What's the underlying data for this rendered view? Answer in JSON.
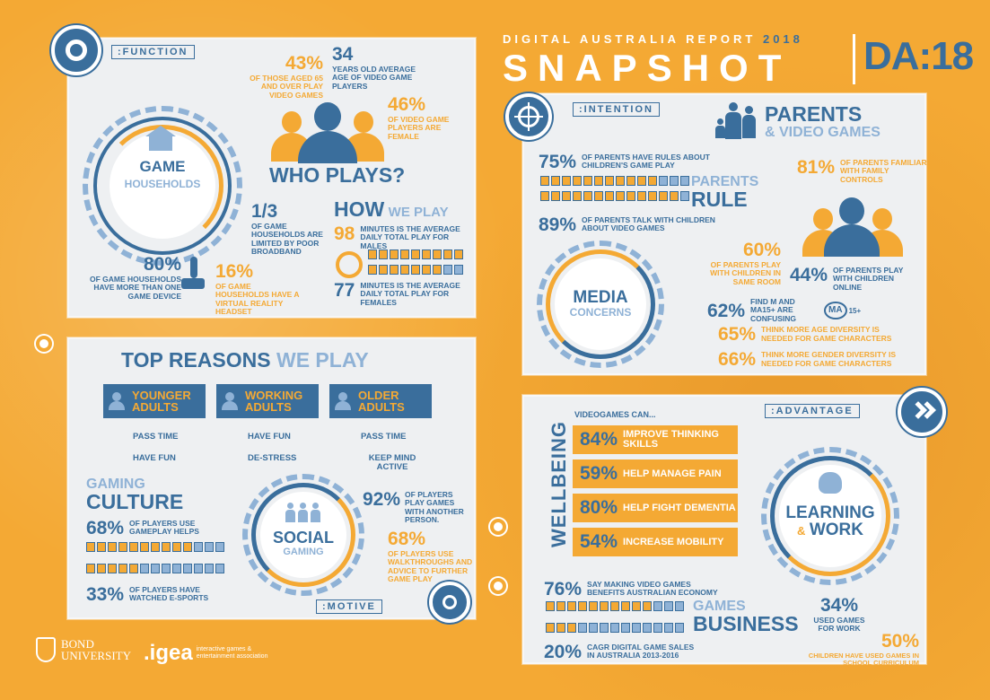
{
  "header": {
    "subtitle_prefix": "DIGITAL AUSTRALIA REPORT",
    "year": "2018",
    "title": "SNAPSHOT",
    "logo": "DA:18"
  },
  "function": {
    "tag": ":FUNCTION",
    "game_households_line1": "GAME",
    "game_households_line2": "HOUSEHOLDS",
    "stat_43_value": "43%",
    "stat_43_text": "OF THOSE AGED 65 AND OVER PLAY VIDEO GAMES",
    "stat_34_value": "34",
    "stat_34_text": "YEARS OLD AVERAGE AGE OF VIDEO GAME PLAYERS",
    "stat_46_value": "46%",
    "stat_46_text": "OF VIDEO GAME PLAYERS ARE FEMALE",
    "who_plays": "WHO PLAYS?",
    "stat_1_3_value": "1/3",
    "stat_1_3_text": "OF GAME HOUSEHOLDS ARE LIMITED BY POOR BROADBAND",
    "stat_80_value": "80%",
    "stat_80_text": "OF GAME HOUSEHOLDS HAVE MORE THAN ONE GAME DEVICE",
    "stat_16_value": "16%",
    "stat_16_text": "OF GAME HOUSEHOLDS HAVE A VIRTUAL REALITY HEADSET",
    "how_a": "HOW",
    "how_b": "WE PLAY",
    "stat_98_value": "98",
    "stat_98_text": "MINUTES IS THE AVERAGE DAILY TOTAL PLAY FOR MALES",
    "stat_77_value": "77",
    "stat_77_text": "MINUTES IS THE AVERAGE DAILY TOTAL PLAY FOR FEMALES",
    "males_bar": 0.98,
    "females_bar": 0.77
  },
  "intention": {
    "tag": ":INTENTION",
    "parents_a": "PARENTS",
    "parents_b": "& VIDEO GAMES",
    "stat_75_value": "75%",
    "stat_75_text": "OF PARENTS HAVE RULES ABOUT CHILDREN'S GAME PLAY",
    "stat_89_value": "89%",
    "stat_89_text": "OF PARENTS TALK WITH CHILDREN ABOUT VIDEO GAMES",
    "parents_rule_a": "PARENTS",
    "parents_rule_b": "RULE",
    "stat_81_value": "81%",
    "stat_81_text": "OF PARENTS FAMILIAR WITH FAMILY CONTROLS",
    "stat_60_value": "60%",
    "stat_60_text": "OF PARENTS PLAY WITH CHILDREN IN SAME ROOM",
    "stat_44_value": "44%",
    "stat_44_text": "OF PARENTS PLAY WITH CHILDREN ONLINE",
    "media_a": "MEDIA",
    "media_b": "CONCERNS",
    "stat_62_value": "62%",
    "stat_62_text": "FIND M AND MA15+ ARE CONFUSING",
    "ma_badge": "MA",
    "ma_suffix": "15+",
    "stat_65_value": "65%",
    "stat_65_text": "THINK MORE AGE DIVERSITY IS NEEDED FOR GAME CHARACTERS",
    "stat_66_value": "66%",
    "stat_66_text": "THINK MORE GENDER DIVERSITY IS NEEDED FOR GAME CHARACTERS"
  },
  "motive": {
    "tag": ":MOTIVE",
    "title_a": "TOP REASONS",
    "title_b": "WE PLAY",
    "groups": [
      {
        "label_a": "YOUNGER",
        "label_b": "ADULTS",
        "r1": "PASS TIME",
        "r2": "HAVE FUN"
      },
      {
        "label_a": "WORKING",
        "label_b": "ADULTS",
        "r1": "HAVE FUN",
        "r2": "DE-STRESS"
      },
      {
        "label_a": "OLDER",
        "label_b": "ADULTS",
        "r1": "PASS TIME",
        "r2": "KEEP MIND ACTIVE"
      }
    ],
    "culture_a": "GAMING",
    "culture_b": "CULTURE",
    "stat_68a_value": "68%",
    "stat_68a_text": "OF PLAYERS USE GAMEPLAY HELPS",
    "stat_33_value": "33%",
    "stat_33_text": "OF PLAYERS HAVE WATCHED E-SPORTS",
    "social_a": "SOCIAL",
    "social_b": "GAMING",
    "stat_92_value": "92%",
    "stat_92_text": "OF PLAYERS PLAY GAMES WITH ANOTHER PERSON.",
    "stat_68b_value": "68%",
    "stat_68b_text": "OF PLAYERS USE WALKTHROUGHS AND ADVICE TO FURTHER GAME PLAY"
  },
  "advantage": {
    "tag": ":ADVANTAGE",
    "wellbeing": "WELLBEING",
    "videogames_can": "VIDEOGAMES CAN...",
    "bars": [
      {
        "pct": "84%",
        "text": "IMPROVE THINKING SKILLS"
      },
      {
        "pct": "59%",
        "text": "HELP MANAGE PAIN"
      },
      {
        "pct": "80%",
        "text": "HELP FIGHT DEMENTIA"
      },
      {
        "pct": "54%",
        "text": "INCREASE MOBILITY"
      }
    ],
    "learning_a": "LEARNING",
    "learning_amp": "&",
    "learning_b": "WORK",
    "stat_76_value": "76%",
    "stat_76_text": "SAY MAKING VIDEO GAMES BENEFITS AUSTRALIAN ECONOMY",
    "games_a": "GAMES",
    "games_b": "BUSINESS",
    "stat_20_value": "20%",
    "stat_20_text": "CAGR DIGITAL GAME SALES IN AUSTRALIA 2013-2016",
    "stat_34_value": "34%",
    "stat_34_text": "USED GAMES FOR WORK",
    "stat_50_value": "50%",
    "stat_50_text": "CHILDREN HAVE USED GAMES IN SCHOOL CURRICULUM"
  },
  "footer": {
    "bond_a": "BOND",
    "bond_b": "UNIVERSITY",
    "igea": ".igea",
    "igea_sub": "interactive games & entertainment association"
  },
  "colors": {
    "orange": "#f4a934",
    "blue": "#3a6e9c",
    "light_blue": "#8fb2d6",
    "panel": "#eef0f2"
  }
}
